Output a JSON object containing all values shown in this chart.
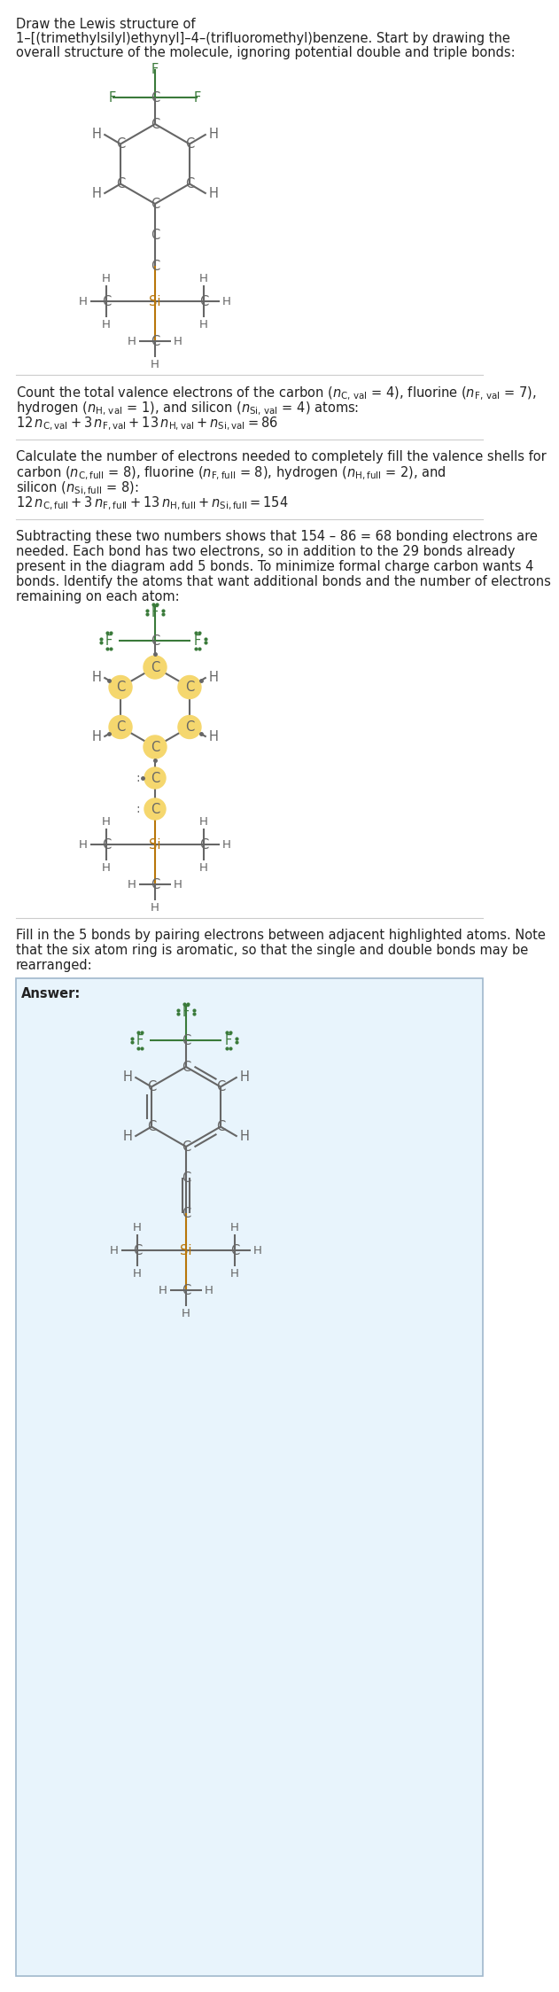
{
  "bg_color": "#ffffff",
  "gray_color": "#666666",
  "green_color": "#3a7a3a",
  "orange_color": "#b8760a",
  "highlight_color": "#f5d76e",
  "text_color": "#222222",
  "answer_bg": "#e8f4fc",
  "answer_border": "#a0b8cc",
  "section_line_color": "#cccccc",
  "title_lines": [
    "Draw the Lewis structure of",
    "1–[(trimethylsilyl)ethynyl]–4–(trifluoromethyl)benzene. Start by drawing the",
    "overall structure of the molecule, ignoring potential double and triple bonds:"
  ],
  "sec2_lines": [
    "Count the total valence electrons of the carbon ($n_{\\mathrm{C,\\,val}}$ = 4), fluorine ($n_{\\mathrm{F,\\,val}}$ = 7),",
    "hydrogen ($n_{\\mathrm{H,\\,val}}$ = 1), and silicon ($n_{\\mathrm{Si,\\,val}}$ = 4) atoms:",
    "$12\\, n_{\\mathrm{C,val}} + 3\\, n_{\\mathrm{F,val}} + 13\\, n_{\\mathrm{H,val}} + n_{\\mathrm{Si,val}} = 86$"
  ],
  "sec3_lines": [
    "Calculate the number of electrons needed to completely fill the valence shells for",
    "carbon ($n_{\\mathrm{C,full}}$ = 8), fluorine ($n_{\\mathrm{F,full}}$ = 8), hydrogen ($n_{\\mathrm{H,full}}$ = 2), and",
    "silicon ($n_{\\mathrm{Si,full}}$ = 8):",
    "$12\\, n_{\\mathrm{C,full}} + 3\\, n_{\\mathrm{F,full}} + 13\\, n_{\\mathrm{H,full}} + n_{\\mathrm{Si,full}} = 154$"
  ],
  "sec4_lines": [
    "Subtracting these two numbers shows that 154 – 86 = 68 bonding electrons are",
    "needed. Each bond has two electrons, so in addition to the 29 bonds already",
    "present in the diagram add 5 bonds. To minimize formal charge carbon wants 4",
    "bonds. Identify the atoms that want additional bonds and the number of electrons",
    "remaining on each atom:"
  ],
  "sec5_lines": [
    "Fill in the 5 bonds by pairing electrons between adjacent highlighted atoms. Note",
    "that the six atom ring is aromatic, so that the single and double bonds may be",
    "rearranged:"
  ]
}
